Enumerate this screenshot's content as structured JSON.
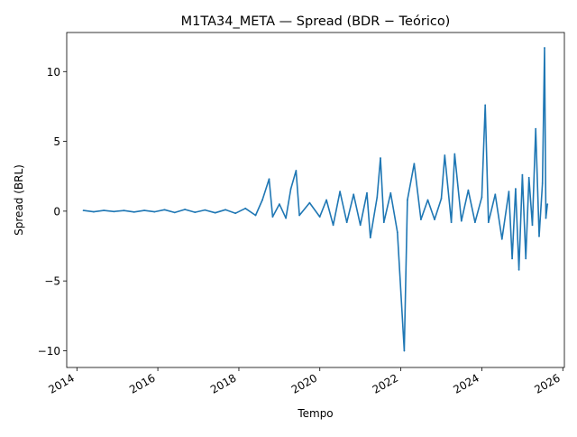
{
  "chart_data": {
    "type": "line",
    "title": "M1TA34_META — Spread (BDR − Teórico)",
    "xlabel": "Tempo",
    "ylabel": "Spread (BRL)",
    "x_range": [
      "2013-10-01",
      "2026-01-15"
    ],
    "ylim": [
      -11.2,
      12.8
    ],
    "x_ticks": [
      {
        "date": "2014-01-01",
        "label": "2014"
      },
      {
        "date": "2016-01-01",
        "label": "2016"
      },
      {
        "date": "2018-01-01",
        "label": "2018"
      },
      {
        "date": "2020-01-01",
        "label": "2020"
      },
      {
        "date": "2022-01-01",
        "label": "2022"
      },
      {
        "date": "2024-01-01",
        "label": "2024"
      },
      {
        "date": "2026-01-01",
        "label": "2026"
      }
    ],
    "y_ticks": [
      {
        "value": -10,
        "label": "−10"
      },
      {
        "value": -5,
        "label": "−5"
      },
      {
        "value": 0,
        "label": "0"
      },
      {
        "value": 5,
        "label": "5"
      },
      {
        "value": 10,
        "label": "10"
      }
    ],
    "grid": false,
    "series": [
      {
        "color": "#1f77b4",
        "points": [
          [
            "2014-03-01",
            0.05
          ],
          [
            "2014-06-01",
            -0.05
          ],
          [
            "2014-09-01",
            0.05
          ],
          [
            "2014-12-01",
            -0.03
          ],
          [
            "2015-03-01",
            0.04
          ],
          [
            "2015-06-01",
            -0.06
          ],
          [
            "2015-09-01",
            0.05
          ],
          [
            "2015-12-01",
            -0.05
          ],
          [
            "2016-03-01",
            0.1
          ],
          [
            "2016-06-01",
            -0.1
          ],
          [
            "2016-09-01",
            0.12
          ],
          [
            "2016-12-01",
            -0.08
          ],
          [
            "2017-03-01",
            0.08
          ],
          [
            "2017-06-01",
            -0.12
          ],
          [
            "2017-09-01",
            0.1
          ],
          [
            "2017-12-01",
            -0.15
          ],
          [
            "2018-03-01",
            0.2
          ],
          [
            "2018-06-01",
            -0.3
          ],
          [
            "2018-08-01",
            0.8
          ],
          [
            "2018-10-01",
            2.3
          ],
          [
            "2018-11-01",
            -0.4
          ],
          [
            "2019-01-01",
            0.5
          ],
          [
            "2019-03-01",
            -0.5
          ],
          [
            "2019-04-15",
            1.6
          ],
          [
            "2019-06-01",
            2.9
          ],
          [
            "2019-07-01",
            -0.3
          ],
          [
            "2019-10-01",
            0.6
          ],
          [
            "2020-01-01",
            -0.4
          ],
          [
            "2020-03-01",
            0.8
          ],
          [
            "2020-05-01",
            -1.0
          ],
          [
            "2020-07-01",
            1.4
          ],
          [
            "2020-09-01",
            -0.8
          ],
          [
            "2020-11-01",
            1.2
          ],
          [
            "2021-01-01",
            -1.0
          ],
          [
            "2021-03-01",
            1.3
          ],
          [
            "2021-04-01",
            -1.9
          ],
          [
            "2021-06-01",
            1.0
          ],
          [
            "2021-07-01",
            3.8
          ],
          [
            "2021-08-01",
            -0.8
          ],
          [
            "2021-10-01",
            1.3
          ],
          [
            "2021-12-01",
            -1.5
          ],
          [
            "2022-02-01",
            -10.0
          ],
          [
            "2022-03-01",
            0.8
          ],
          [
            "2022-05-01",
            3.4
          ],
          [
            "2022-07-01",
            -0.6
          ],
          [
            "2022-09-01",
            0.8
          ],
          [
            "2022-11-01",
            -0.6
          ],
          [
            "2023-01-01",
            0.9
          ],
          [
            "2023-02-01",
            4.0
          ],
          [
            "2023-04-01",
            -0.8
          ],
          [
            "2023-05-01",
            4.1
          ],
          [
            "2023-07-01",
            -0.7
          ],
          [
            "2023-09-01",
            1.5
          ],
          [
            "2023-11-01",
            -0.8
          ],
          [
            "2024-01-01",
            1.0
          ],
          [
            "2024-02-01",
            7.6
          ],
          [
            "2024-03-01",
            -0.8
          ],
          [
            "2024-05-01",
            1.2
          ],
          [
            "2024-07-01",
            -2.0
          ],
          [
            "2024-09-01",
            1.4
          ],
          [
            "2024-10-01",
            -3.4
          ],
          [
            "2024-11-01",
            1.6
          ],
          [
            "2024-12-01",
            -4.2
          ],
          [
            "2025-01-01",
            2.6
          ],
          [
            "2025-02-01",
            -3.4
          ],
          [
            "2025-03-01",
            2.4
          ],
          [
            "2025-04-01",
            -1.0
          ],
          [
            "2025-05-01",
            5.9
          ],
          [
            "2025-06-01",
            -1.8
          ],
          [
            "2025-07-01",
            2.0
          ],
          [
            "2025-07-20",
            11.7
          ],
          [
            "2025-08-01",
            -0.5
          ],
          [
            "2025-08-15",
            0.5
          ]
        ]
      }
    ]
  }
}
